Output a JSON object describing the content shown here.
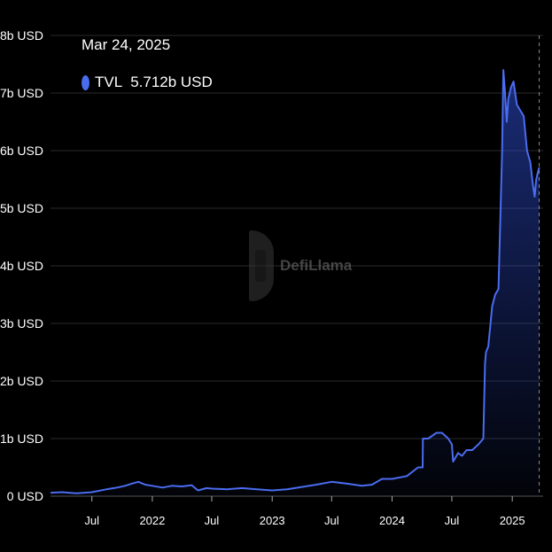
{
  "tooltip": {
    "date": "Mar 24, 2025",
    "series_name": "TVL",
    "value": "5.712b USD"
  },
  "watermark": {
    "text": "DefiLlama"
  },
  "colors": {
    "line": "#4a6cf0",
    "background": "#000000",
    "grid": "#2a2a2a",
    "text": "#ffffff"
  },
  "chart_data": {
    "type": "area",
    "title": "",
    "xlabel": "",
    "ylabel": "",
    "grid": true,
    "ylim": [
      0,
      8
    ],
    "y_unit": "b USD",
    "y_ticks": [
      0,
      1,
      2,
      3,
      4,
      5,
      6,
      7,
      8
    ],
    "y_tick_labels": [
      "0 USD",
      "1b USD",
      "2b USD",
      "3b USD",
      "4b USD",
      "5b USD",
      "6b USD",
      "7b USD",
      "8b USD"
    ],
    "xlim": [
      "2021-02-25",
      "2025-04-05"
    ],
    "x_ticks": [
      "2021-07-01",
      "2022-01-01",
      "2022-07-01",
      "2023-01-01",
      "2023-07-01",
      "2024-01-01",
      "2024-07-01",
      "2025-01-01"
    ],
    "x_tick_labels": [
      "Jul",
      "2022",
      "Jul",
      "2023",
      "Jul",
      "2024",
      "Jul",
      "2025"
    ],
    "highlight_date": "2025-03-24",
    "series": [
      {
        "name": "TVL",
        "x": [
          "2021-02-25",
          "2021-04-01",
          "2021-05-15",
          "2021-07-01",
          "2021-08-15",
          "2021-09-15",
          "2021-10-10",
          "2021-11-01",
          "2021-11-20",
          "2021-12-10",
          "2022-01-01",
          "2022-02-01",
          "2022-03-01",
          "2022-04-01",
          "2022-05-01",
          "2022-05-20",
          "2022-06-15",
          "2022-07-01",
          "2022-08-15",
          "2022-10-01",
          "2022-11-15",
          "2023-01-01",
          "2023-02-15",
          "2023-04-01",
          "2023-05-15",
          "2023-07-01",
          "2023-08-15",
          "2023-10-01",
          "2023-11-01",
          "2023-12-01",
          "2024-01-01",
          "2024-02-15",
          "2024-03-20",
          "2024-04-03",
          "2024-04-04",
          "2024-04-20",
          "2024-05-15",
          "2024-06-01",
          "2024-06-20",
          "2024-07-01",
          "2024-07-05",
          "2024-07-10",
          "2024-07-20",
          "2024-08-01",
          "2024-08-15",
          "2024-09-01",
          "2024-09-20",
          "2024-10-05",
          "2024-10-10",
          "2024-10-13",
          "2024-10-20",
          "2024-11-01",
          "2024-11-10",
          "2024-11-20",
          "2024-12-01",
          "2024-12-05",
          "2024-12-10",
          "2024-12-15",
          "2024-12-20",
          "2024-12-28",
          "2025-01-05",
          "2025-01-15",
          "2025-01-25",
          "2025-02-05",
          "2025-02-15",
          "2025-02-25",
          "2025-03-05",
          "2025-03-10",
          "2025-03-15",
          "2025-03-19",
          "2025-03-24"
        ],
        "values": [
          0.06,
          0.07,
          0.05,
          0.07,
          0.12,
          0.15,
          0.18,
          0.22,
          0.25,
          0.2,
          0.18,
          0.15,
          0.18,
          0.17,
          0.19,
          0.1,
          0.14,
          0.13,
          0.12,
          0.14,
          0.12,
          0.1,
          0.12,
          0.16,
          0.2,
          0.25,
          0.22,
          0.18,
          0.2,
          0.3,
          0.3,
          0.35,
          0.5,
          0.5,
          1.0,
          1.0,
          1.1,
          1.1,
          1.0,
          0.9,
          0.6,
          0.65,
          0.75,
          0.7,
          0.8,
          0.8,
          0.9,
          1.0,
          2.3,
          2.5,
          2.6,
          3.3,
          3.5,
          3.6,
          6.0,
          7.4,
          7.0,
          6.5,
          6.9,
          7.1,
          7.2,
          6.8,
          6.7,
          6.6,
          6.0,
          5.8,
          5.4,
          5.2,
          5.5,
          5.6,
          5.71
        ]
      }
    ]
  }
}
